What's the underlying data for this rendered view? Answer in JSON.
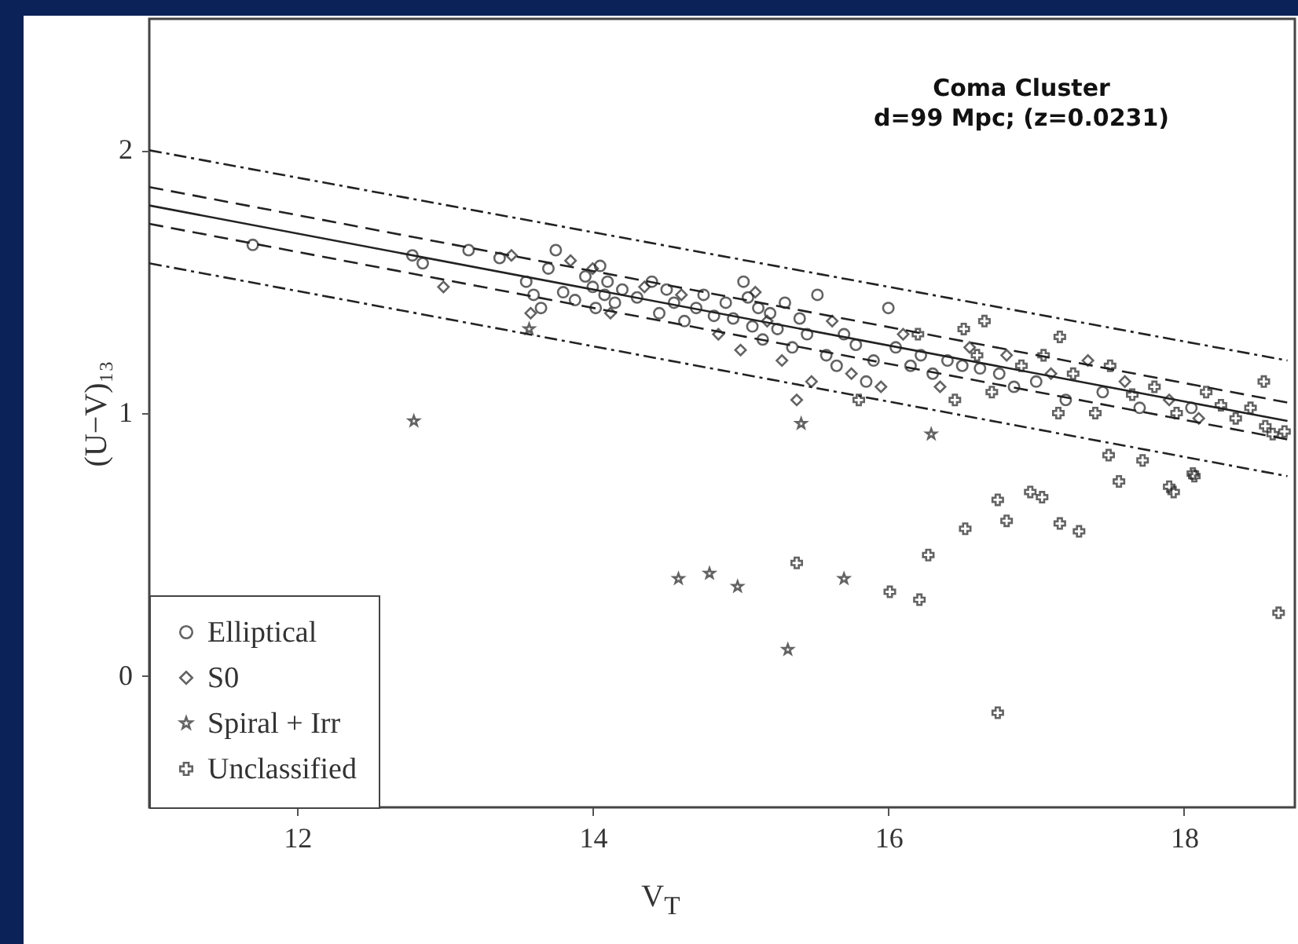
{
  "chart_data": {
    "type": "scatter",
    "xlabel": "V$_{T}$",
    "ylabel": "(U−V)₁₃",
    "annotations": [
      "Coma Cluster",
      "d=99 Mpc;  (z=0.0231)"
    ],
    "xlim": [
      11,
      18.75
    ],
    "ylim": [
      -0.5,
      2.5
    ],
    "xticks": [
      12,
      14,
      16,
      18
    ],
    "yticks": [
      0,
      1,
      2
    ],
    "legend": "bottom left",
    "series": [
      {
        "name": "Elliptical",
        "type": "scatter",
        "marker": "circle",
        "color": "#222222",
        "x": [
          11.7,
          12.78,
          12.85,
          13.16,
          13.37,
          13.55,
          13.6,
          13.65,
          13.7,
          13.75,
          13.8,
          13.88,
          13.95,
          14.0,
          14.02,
          14.05,
          14.08,
          14.1,
          14.15,
          14.2,
          14.3,
          14.4,
          14.45,
          14.5,
          14.55,
          14.62,
          14.7,
          14.75,
          14.82,
          14.9,
          14.95,
          15.02,
          15.05,
          15.08,
          15.12,
          15.15,
          15.2,
          15.25,
          15.3,
          15.35,
          15.4,
          15.45,
          15.52,
          15.58,
          15.65,
          15.7,
          15.78,
          15.85,
          15.9,
          16.0,
          16.05,
          16.15,
          16.22,
          16.3,
          16.4,
          16.5,
          16.62,
          16.75,
          16.85,
          17.0,
          17.2,
          17.45,
          17.7,
          18.05
        ],
        "values": [
          1.64,
          1.6,
          1.57,
          1.62,
          1.59,
          1.5,
          1.45,
          1.4,
          1.55,
          1.62,
          1.46,
          1.43,
          1.52,
          1.48,
          1.4,
          1.56,
          1.45,
          1.5,
          1.42,
          1.47,
          1.44,
          1.5,
          1.38,
          1.47,
          1.42,
          1.35,
          1.4,
          1.45,
          1.37,
          1.42,
          1.36,
          1.5,
          1.44,
          1.33,
          1.4,
          1.28,
          1.38,
          1.32,
          1.42,
          1.25,
          1.36,
          1.3,
          1.45,
          1.22,
          1.18,
          1.3,
          1.26,
          1.12,
          1.2,
          1.4,
          1.25,
          1.18,
          1.22,
          1.15,
          1.2,
          1.18,
          1.17,
          1.15,
          1.1,
          1.12,
          1.05,
          1.08,
          1.02,
          1.02
        ]
      },
      {
        "name": "S0",
        "type": "scatter",
        "marker": "diamond",
        "color": "#222222",
        "x": [
          12.99,
          13.45,
          13.58,
          13.85,
          14.0,
          14.12,
          14.35,
          14.6,
          14.85,
          15.0,
          15.1,
          15.18,
          15.28,
          15.38,
          15.48,
          15.62,
          15.75,
          15.95,
          16.1,
          16.35,
          16.55,
          16.8,
          17.1,
          17.35,
          17.6,
          17.9,
          18.1
        ],
        "values": [
          1.48,
          1.6,
          1.38,
          1.58,
          1.55,
          1.38,
          1.48,
          1.45,
          1.3,
          1.24,
          1.46,
          1.35,
          1.2,
          1.05,
          1.12,
          1.35,
          1.15,
          1.1,
          1.3,
          1.1,
          1.25,
          1.22,
          1.15,
          1.2,
          1.12,
          1.05,
          0.98
        ]
      },
      {
        "name": "Spiral + Irr",
        "type": "scatter",
        "marker": "star",
        "color": "#222222",
        "x": [
          12.79,
          13.57,
          14.58,
          14.79,
          14.98,
          15.32,
          15.41,
          15.7,
          16.29
        ],
        "values": [
          0.97,
          1.32,
          0.37,
          0.39,
          0.34,
          0.1,
          0.96,
          0.37,
          0.92
        ]
      },
      {
        "name": "Unclassified",
        "type": "scatter",
        "marker": "cross",
        "color": "#222222",
        "x": [
          15.38,
          16.01,
          16.21,
          16.27,
          16.52,
          16.74,
          16.8,
          16.96,
          17.04,
          17.16,
          17.29,
          17.56,
          17.9,
          17.93,
          18.07,
          18.64,
          16.74,
          17.49,
          17.72,
          18.06,
          18.54,
          17.16,
          16.65,
          16.51,
          18.6,
          15.8,
          16.2,
          16.45,
          16.6,
          16.7,
          16.9,
          17.05,
          17.15,
          17.25,
          17.4,
          17.5,
          17.65,
          17.8,
          17.95,
          18.15,
          18.25,
          18.35,
          18.45,
          18.55,
          18.68
        ],
        "values": [
          0.43,
          0.32,
          0.29,
          0.46,
          0.56,
          0.67,
          0.59,
          0.7,
          0.68,
          0.58,
          0.55,
          0.74,
          0.72,
          0.7,
          0.76,
          0.24,
          -0.14,
          0.84,
          0.82,
          0.77,
          1.12,
          1.29,
          1.35,
          1.32,
          0.92,
          1.05,
          1.3,
          1.05,
          1.22,
          1.08,
          1.18,
          1.22,
          1.0,
          1.15,
          1.0,
          1.18,
          1.07,
          1.1,
          1.0,
          1.08,
          1.03,
          0.98,
          1.02,
          0.95,
          0.93
        ]
      },
      {
        "type": "line",
        "line_style": "solid",
        "color": "#222222",
        "x": [
          11,
          18.7
        ],
        "values": [
          1.79,
          0.97
        ]
      },
      {
        "type": "line",
        "line_style": "dashed",
        "color": "#222222",
        "x": [
          11,
          18.7
        ],
        "values": [
          1.86,
          1.04
        ]
      },
      {
        "type": "line",
        "line_style": "dashed",
        "color": "#222222",
        "x": [
          11,
          18.7
        ],
        "values": [
          1.72,
          0.9
        ]
      },
      {
        "type": "line",
        "line_style": "dotted",
        "color": "#222222",
        "x": [
          11,
          18.7
        ],
        "values": [
          2.0,
          1.2
        ]
      },
      {
        "type": "line",
        "line_style": "dotted",
        "color": "#222222",
        "x": [
          11,
          18.7
        ],
        "values": [
          1.57,
          0.76
        ]
      }
    ]
  }
}
